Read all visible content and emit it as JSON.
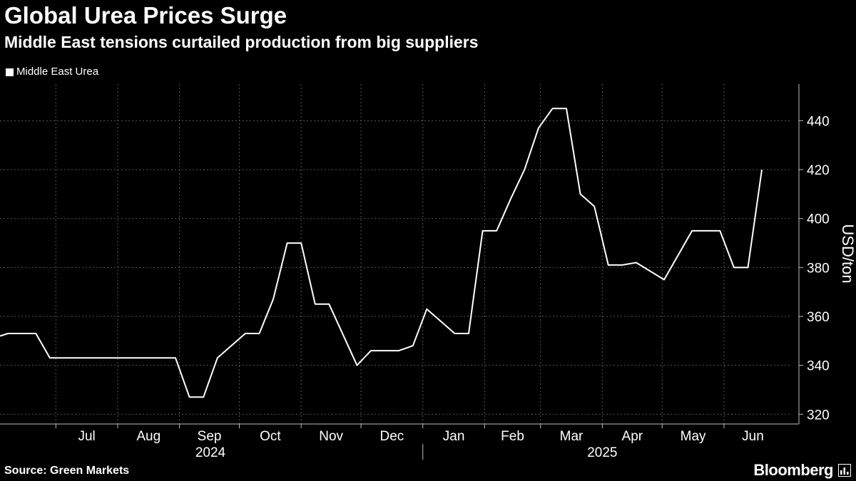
{
  "header": {
    "title": "Global Urea Prices Surge",
    "subtitle": "Middle East tensions curtailed production from big suppliers"
  },
  "footer": {
    "source": "Source: Green Markets",
    "brand": "Bloomberg"
  },
  "icons": {
    "brand": "bloomberg-chart-icon"
  },
  "colors": {
    "background": "#000000",
    "line": "#ffffff",
    "grid": "#555555",
    "text": "#ffffff"
  },
  "chart_data": {
    "type": "line",
    "ylabel": "USD/ton",
    "ylim": [
      316,
      455
    ],
    "yticks": [
      320,
      340,
      360,
      380,
      400,
      420,
      440
    ],
    "y_axis_side": "right",
    "grid": "dotted",
    "legend_position": "top-left",
    "xlim": [
      "2024-06-03",
      "2025-06-30"
    ],
    "month_ticks": [
      {
        "label": "Jul",
        "date": "2024-07-01"
      },
      {
        "label": "Aug",
        "date": "2024-08-01"
      },
      {
        "label": "Sep",
        "date": "2024-09-01"
      },
      {
        "label": "Oct",
        "date": "2024-10-01"
      },
      {
        "label": "Nov",
        "date": "2024-11-01"
      },
      {
        "label": "Dec",
        "date": "2024-12-01"
      },
      {
        "label": "Jan",
        "date": "2025-01-01"
      },
      {
        "label": "Feb",
        "date": "2025-02-01"
      },
      {
        "label": "Mar",
        "date": "2025-03-01"
      },
      {
        "label": "Apr",
        "date": "2025-04-01"
      },
      {
        "label": "May",
        "date": "2025-05-01"
      },
      {
        "label": "Jun",
        "date": "2025-06-01"
      }
    ],
    "years": [
      {
        "label": "2024",
        "start": "2024-06-03",
        "end": "2024-12-31"
      },
      {
        "label": "2025",
        "start": "2025-01-01",
        "end": "2025-06-30"
      }
    ],
    "series": [
      {
        "name": "Middle East Urea",
        "x": [
          "2024-06-03",
          "2024-06-07",
          "2024-06-21",
          "2024-06-28",
          "2024-08-30",
          "2024-09-06",
          "2024-09-13",
          "2024-09-20",
          "2024-10-04",
          "2024-10-11",
          "2024-10-18",
          "2024-10-25",
          "2024-11-01",
          "2024-11-08",
          "2024-11-15",
          "2024-11-29",
          "2024-12-06",
          "2024-12-13",
          "2024-12-20",
          "2024-12-27",
          "2025-01-03",
          "2025-01-10",
          "2025-01-17",
          "2025-01-24",
          "2025-01-31",
          "2025-02-07",
          "2025-02-14",
          "2025-02-21",
          "2025-02-28",
          "2025-03-07",
          "2025-03-14",
          "2025-03-21",
          "2025-03-28",
          "2025-04-04",
          "2025-04-11",
          "2025-04-18",
          "2025-05-02",
          "2025-05-16",
          "2025-05-23",
          "2025-05-30",
          "2025-06-06",
          "2025-06-13",
          "2025-06-20"
        ],
        "values": [
          352,
          353,
          353,
          343,
          343,
          327,
          327,
          343,
          353,
          353,
          367,
          390,
          390,
          365,
          365,
          340,
          346,
          346,
          346,
          348,
          363,
          358,
          353,
          353,
          395,
          395,
          408,
          420,
          437,
          445,
          445,
          410,
          405,
          381,
          381,
          382,
          375,
          395,
          395,
          395,
          380,
          380,
          420
        ]
      }
    ]
  }
}
